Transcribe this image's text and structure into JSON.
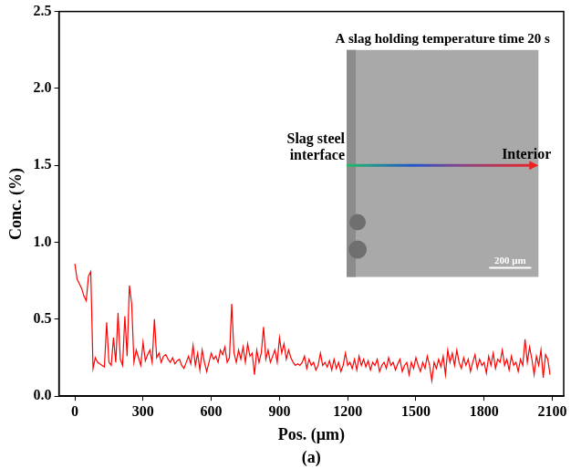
{
  "chart_data": {
    "type": "line",
    "x_label": "Pos. (μm)",
    "y_label": "Conc. (%)",
    "caption": "(a)",
    "annotations": [
      "A slag holding temperature time 20 s",
      "Slag steel interface",
      "Interior",
      "200 μm"
    ],
    "x": [
      0,
      10,
      20,
      30,
      40,
      50,
      60,
      70,
      80,
      90,
      100,
      110,
      120,
      130,
      140,
      150,
      160,
      170,
      180,
      190,
      200,
      210,
      220,
      230,
      240,
      250,
      260,
      270,
      280,
      290,
      300,
      310,
      320,
      330,
      340,
      350,
      360,
      370,
      380,
      390,
      400,
      410,
      420,
      430,
      440,
      450,
      460,
      470,
      480,
      490,
      500,
      510,
      520,
      530,
      540,
      550,
      560,
      570,
      580,
      590,
      600,
      610,
      620,
      630,
      640,
      650,
      660,
      670,
      680,
      690,
      700,
      710,
      720,
      730,
      740,
      750,
      760,
      770,
      780,
      790,
      800,
      810,
      820,
      830,
      840,
      850,
      860,
      870,
      880,
      890,
      900,
      910,
      920,
      930,
      940,
      950,
      960,
      970,
      980,
      990,
      1000,
      1010,
      1020,
      1030,
      1040,
      1050,
      1060,
      1070,
      1080,
      1090,
      1100,
      1110,
      1120,
      1130,
      1140,
      1150,
      1160,
      1170,
      1180,
      1190,
      1200,
      1210,
      1220,
      1230,
      1240,
      1250,
      1260,
      1270,
      1280,
      1290,
      1300,
      1310,
      1320,
      1330,
      1340,
      1350,
      1360,
      1370,
      1380,
      1390,
      1400,
      1410,
      1420,
      1430,
      1440,
      1450,
      1460,
      1470,
      1480,
      1490,
      1500,
      1510,
      1520,
      1530,
      1540,
      1550,
      1560,
      1570,
      1580,
      1590,
      1600,
      1610,
      1620,
      1630,
      1640,
      1650,
      1660,
      1670,
      1680,
      1690,
      1700,
      1710,
      1720,
      1730,
      1740,
      1750,
      1760,
      1770,
      1780,
      1790,
      1800,
      1810,
      1820,
      1830,
      1840,
      1850,
      1860,
      1870,
      1880,
      1890,
      1900,
      1910,
      1920,
      1930,
      1940,
      1950,
      1960,
      1970,
      1980,
      1990,
      2000,
      2010,
      2020,
      2030,
      2040,
      2050,
      2060,
      2070,
      2080,
      2090
    ],
    "series": [
      {
        "name": "Conc.",
        "color": "#ff0000",
        "values": [
          0.86,
          0.76,
          0.73,
          0.7,
          0.65,
          0.62,
          0.78,
          0.81,
          0.18,
          0.25,
          0.22,
          0.21,
          0.2,
          0.19,
          0.48,
          0.22,
          0.2,
          0.38,
          0.22,
          0.54,
          0.24,
          0.2,
          0.52,
          0.26,
          0.72,
          0.6,
          0.22,
          0.3,
          0.25,
          0.2,
          0.35,
          0.23,
          0.27,
          0.3,
          0.22,
          0.5,
          0.25,
          0.28,
          0.22,
          0.26,
          0.27,
          0.24,
          0.22,
          0.25,
          0.21,
          0.23,
          0.24,
          0.2,
          0.18,
          0.22,
          0.26,
          0.21,
          0.33,
          0.2,
          0.28,
          0.17,
          0.3,
          0.22,
          0.16,
          0.22,
          0.28,
          0.24,
          0.26,
          0.22,
          0.3,
          0.27,
          0.32,
          0.22,
          0.25,
          0.6,
          0.28,
          0.22,
          0.3,
          0.24,
          0.32,
          0.22,
          0.34,
          0.26,
          0.28,
          0.14,
          0.3,
          0.22,
          0.28,
          0.45,
          0.24,
          0.3,
          0.22,
          0.26,
          0.3,
          0.22,
          0.38,
          0.28,
          0.34,
          0.24,
          0.3,
          0.25,
          0.22,
          0.2,
          0.21,
          0.2,
          0.22,
          0.26,
          0.18,
          0.24,
          0.2,
          0.22,
          0.17,
          0.2,
          0.28,
          0.2,
          0.22,
          0.19,
          0.23,
          0.17,
          0.24,
          0.18,
          0.22,
          0.16,
          0.2,
          0.28,
          0.2,
          0.22,
          0.18,
          0.24,
          0.17,
          0.26,
          0.2,
          0.24,
          0.19,
          0.23,
          0.17,
          0.22,
          0.2,
          0.24,
          0.16,
          0.2,
          0.22,
          0.18,
          0.25,
          0.2,
          0.22,
          0.17,
          0.21,
          0.24,
          0.16,
          0.2,
          0.22,
          0.14,
          0.22,
          0.18,
          0.25,
          0.2,
          0.16,
          0.22,
          0.18,
          0.26,
          0.2,
          0.1,
          0.22,
          0.18,
          0.24,
          0.19,
          0.26,
          0.14,
          0.3,
          0.22,
          0.28,
          0.2,
          0.3,
          0.22,
          0.18,
          0.25,
          0.2,
          0.24,
          0.16,
          0.22,
          0.27,
          0.18,
          0.24,
          0.2,
          0.22,
          0.15,
          0.26,
          0.2,
          0.28,
          0.18,
          0.24,
          0.22,
          0.3,
          0.2,
          0.24,
          0.17,
          0.26,
          0.2,
          0.22,
          0.16,
          0.24,
          0.2,
          0.37,
          0.22,
          0.32,
          0.24,
          0.14,
          0.26,
          0.2,
          0.3,
          0.12,
          0.27,
          0.24,
          0.14
        ]
      }
    ],
    "xlim": [
      -70,
      2150
    ],
    "xticks": [
      0,
      300,
      600,
      900,
      1200,
      1500,
      1800,
      2100
    ],
    "ylim": [
      0,
      2.5
    ],
    "yticks": [
      {
        "value": 0,
        "label": "0.0"
      },
      0.5,
      {
        "value": 1,
        "label": "1.0"
      },
      1.5,
      {
        "value": 2,
        "label": "2.0"
      },
      2.5
    ],
    "grid": false
  }
}
